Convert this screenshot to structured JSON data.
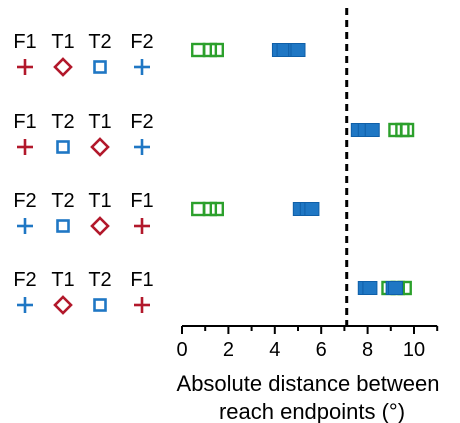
{
  "chart_data": {
    "type": "scatter",
    "xlabel_lines": [
      "Absolute distance between",
      "reach endpoints (°)"
    ],
    "xlim": [
      0,
      11
    ],
    "xticks": [
      0,
      2,
      4,
      6,
      8,
      10
    ],
    "threshold": 7.1,
    "threshold_style": "dashed",
    "colors": {
      "F": "#1f77c4",
      "F_red": "#b2182b",
      "T_green": "#2ca02c",
      "T_blue": "#1f77c4"
    },
    "rows": [
      {
        "order": [
          {
            "label": "F1",
            "symbol": "plus",
            "color": "#b2182b"
          },
          {
            "label": "T1",
            "symbol": "diamond",
            "color": "#b2182b"
          },
          {
            "label": "T2",
            "symbol": "square",
            "color": "#1f77c4"
          },
          {
            "label": "F2",
            "symbol": "plus",
            "color": "#1f77c4"
          }
        ],
        "green": [
          0.7,
          1.2,
          1.5
        ],
        "blue": [
          4.2,
          4.4,
          4.9,
          5.0
        ]
      },
      {
        "order": [
          {
            "label": "F1",
            "symbol": "plus",
            "color": "#b2182b"
          },
          {
            "label": "T2",
            "symbol": "square",
            "color": "#1f77c4"
          },
          {
            "label": "T1",
            "symbol": "diamond",
            "color": "#b2182b"
          },
          {
            "label": "F2",
            "symbol": "plus",
            "color": "#1f77c4"
          }
        ],
        "green": [
          9.2,
          9.5,
          9.7
        ],
        "blue": [
          7.6,
          7.9,
          8.2
        ]
      },
      {
        "order": [
          {
            "label": "F2",
            "symbol": "plus",
            "color": "#1f77c4"
          },
          {
            "label": "T2",
            "symbol": "square",
            "color": "#1f77c4"
          },
          {
            "label": "T1",
            "symbol": "diamond",
            "color": "#b2182b"
          },
          {
            "label": "F1",
            "symbol": "plus",
            "color": "#b2182b"
          }
        ],
        "green": [
          0.7,
          1.2,
          1.5
        ],
        "blue": [
          5.1,
          5.4,
          5.6
        ]
      },
      {
        "order": [
          {
            "label": "F2",
            "symbol": "plus",
            "color": "#1f77c4"
          },
          {
            "label": "T1",
            "symbol": "diamond",
            "color": "#b2182b"
          },
          {
            "label": "T2",
            "symbol": "square",
            "color": "#1f77c4"
          },
          {
            "label": "F1",
            "symbol": "plus",
            "color": "#b2182b"
          }
        ],
        "green": [
          8.9,
          9.3,
          9.6
        ],
        "blue": [
          7.9,
          8.1,
          9.1,
          9.2
        ]
      }
    ]
  }
}
